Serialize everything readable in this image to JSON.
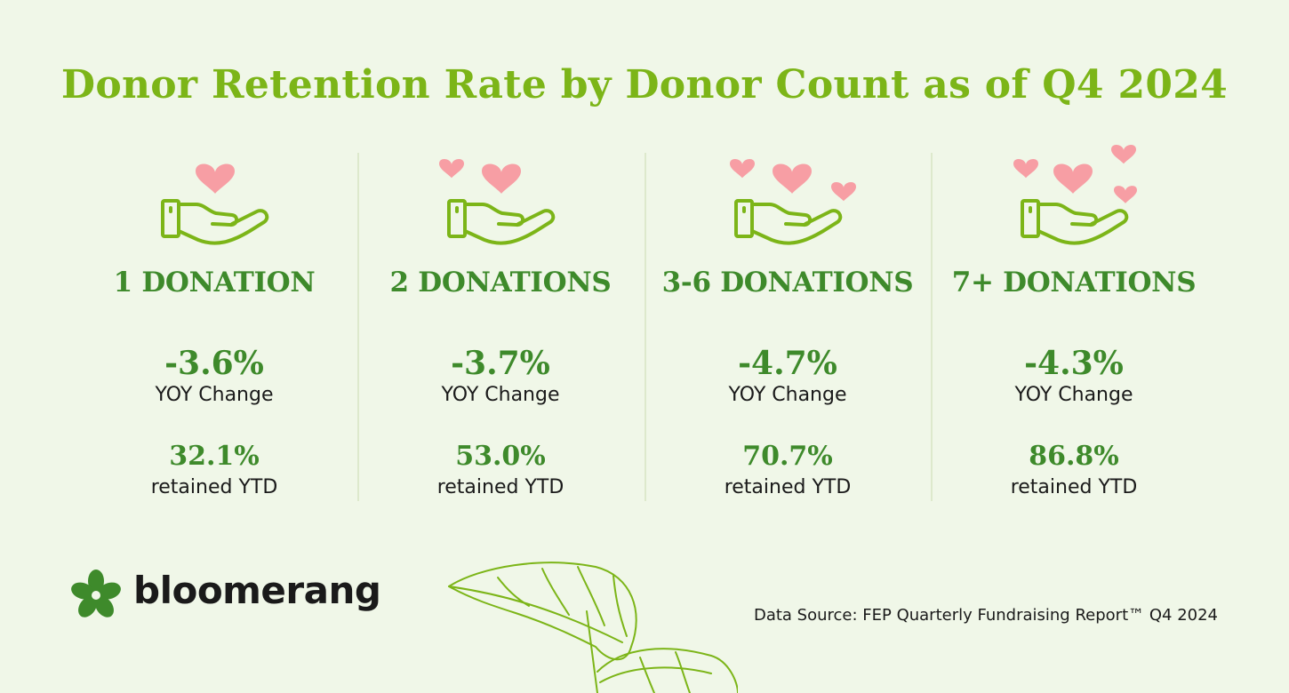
{
  "title": "Donor Retention Rate by Donor Count as of Q4 2024",
  "columns": [
    {
      "label": "1 DONATION",
      "yoy_change": "-3.6%",
      "yoy_caption": "YOY Change",
      "retained": "32.1%",
      "retained_caption": "retained YTD",
      "hearts": 1
    },
    {
      "label": "2 DONATIONS",
      "yoy_change": "-3.7%",
      "yoy_caption": "YOY Change",
      "retained": "53.0%",
      "retained_caption": "retained YTD",
      "hearts": 2
    },
    {
      "label": "3-6 DONATIONS",
      "yoy_change": "-4.7%",
      "yoy_caption": "YOY Change",
      "retained": "70.7%",
      "retained_caption": "retained YTD",
      "hearts": 3
    },
    {
      "label": "7+ DONATIONS",
      "yoy_change": "-4.3%",
      "yoy_caption": "YOY Change",
      "retained": "86.8%",
      "retained_caption": "retained YTD",
      "hearts": 5
    }
  ],
  "brand": {
    "name": "bloomerang",
    "logo_icon": "bloomerang-flower-icon"
  },
  "source": "Data Source: FEP Quarterly Fundraising Report™ Q4 2024",
  "colors": {
    "background": "#f0f7e8",
    "title": "#7cb518",
    "heading": "#3e8a2b",
    "heart": "#f79ea4",
    "hand": "#7cb518"
  }
}
